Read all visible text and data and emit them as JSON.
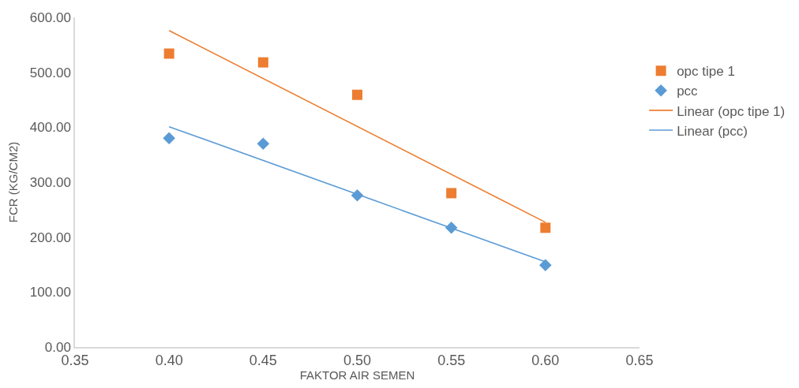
{
  "chart_data": {
    "type": "scatter",
    "xlabel": "FAKTOR AIR SEMEN",
    "ylabel": "FCR (KG/CM2)",
    "xlim": [
      0.35,
      0.65
    ],
    "xticks": [
      {
        "value": 0.35,
        "label": "0.35"
      },
      {
        "value": 0.4,
        "label": "0.40"
      },
      {
        "value": 0.45,
        "label": "0.45"
      },
      {
        "value": 0.5,
        "label": "0.50"
      },
      {
        "value": 0.55,
        "label": "0.55"
      },
      {
        "value": 0.6,
        "label": "0.60"
      },
      {
        "value": 0.65,
        "label": "0.65"
      }
    ],
    "ylim": [
      0,
      600
    ],
    "yticks": [
      {
        "value": 0,
        "label": "0.00"
      },
      {
        "value": 100,
        "label": "100.00"
      },
      {
        "value": 200,
        "label": "200.00"
      },
      {
        "value": 300,
        "label": "300.00"
      },
      {
        "value": 400,
        "label": "400.00"
      },
      {
        "value": 500,
        "label": "500.00"
      },
      {
        "value": 600,
        "label": "600.00"
      }
    ],
    "legend": "right",
    "series": [
      {
        "name": "opc tipe 1",
        "marker": "square",
        "color": "#ed7d31",
        "x": [
          0.4,
          0.45,
          0.5,
          0.55,
          0.6
        ],
        "values": [
          534,
          518,
          459,
          280,
          217
        ]
      },
      {
        "name": "pcc",
        "marker": "diamond",
        "color": "#5b9bd5",
        "x": [
          0.4,
          0.45,
          0.5,
          0.55,
          0.6
        ],
        "values": [
          380,
          370,
          276,
          217,
          149
        ]
      },
      {
        "name": "Linear (opc tipe 1)",
        "type": "line",
        "marker": "none",
        "line_style": "solid",
        "color": "#ed7d31",
        "x": [
          0.4,
          0.6
        ],
        "values": [
          576,
          227
        ]
      },
      {
        "name": "Linear (pcc)",
        "type": "line",
        "marker": "none",
        "line_style": "solid",
        "color": "#5b9bd5",
        "x": [
          0.4,
          0.6
        ],
        "values": [
          401,
          155
        ]
      }
    ]
  }
}
